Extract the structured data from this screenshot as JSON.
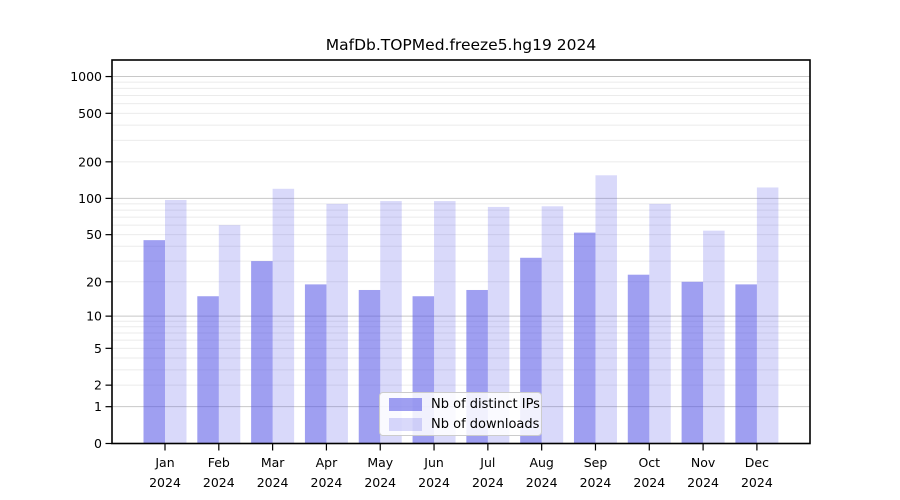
{
  "title": "MafDb.TOPMed.freeze5.hg19 2024",
  "colors": {
    "background": "#ffffff",
    "axis": "#000000",
    "grid_major": "#c8c8c8",
    "grid_minor": "#ebebeb",
    "legend_border": "#cccccc",
    "bar_base": "#5050e6",
    "bar_ips_rendered": "#9f9ff1",
    "bar_downloads_rendered": "#d8d8f9"
  },
  "legend": {
    "items": [
      {
        "label": "Nb of distinct IPs"
      },
      {
        "label": "Nb of downloads"
      }
    ]
  },
  "chart_data": {
    "type": "bar",
    "title": "MafDb.TOPMed.freeze5.hg19 2024",
    "categories": [
      "Jan",
      "Feb",
      "Mar",
      "Apr",
      "May",
      "Jun",
      "Jul",
      "Aug",
      "Sep",
      "Oct",
      "Nov",
      "Dec"
    ],
    "x_year": "2024",
    "series": [
      {
        "name": "Nb of distinct IPs",
        "color": "#5050e6",
        "fill_opacity": 0.55,
        "values": [
          45,
          15,
          30,
          19,
          17,
          15,
          17,
          32,
          52,
          23,
          20,
          19
        ]
      },
      {
        "name": "Nb of downloads",
        "color": "#5050e6",
        "fill_opacity": 0.22,
        "values": [
          97,
          60,
          120,
          90,
          95,
          95,
          85,
          86,
          155,
          90,
          54,
          123
        ]
      }
    ],
    "yscale": "log1p",
    "yticks": [
      0,
      1,
      2,
      5,
      10,
      20,
      50,
      100,
      200,
      500,
      1000
    ],
    "ylim": [
      0,
      1366
    ],
    "xlabel": "",
    "ylabel": "",
    "grid": true,
    "legend_position": "inside-bottom-center"
  }
}
